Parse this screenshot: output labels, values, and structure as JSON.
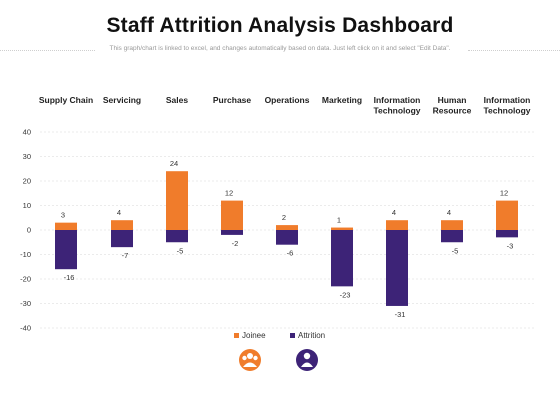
{
  "header": {
    "title": "Staff Attrition Analysis Dashboard",
    "subtitle": "This graph/chart is linked to excel, and changes automatically based on data. Just left click on it and select \"Edit Data\"."
  },
  "chart_data": {
    "type": "bar",
    "categories": [
      "Supply Chain",
      "Servicing",
      "Sales",
      "Purchase",
      "Operations",
      "Marketing",
      "Information Technology",
      "Human Resource",
      "Information Technology"
    ],
    "series": [
      {
        "name": "Joinee",
        "color": "#f07c2b",
        "values": [
          3,
          4,
          24,
          12,
          2,
          1,
          4,
          4,
          12
        ]
      },
      {
        "name": "Attrition",
        "color": "#3d2377",
        "values": [
          -16,
          -7,
          -5,
          -2,
          -6,
          -23,
          -31,
          -5,
          -3
        ]
      }
    ],
    "ylim": [
      -40,
      40
    ],
    "yticks": [
      40,
      30,
      20,
      10,
      0,
      -10,
      -20,
      -30,
      -40
    ],
    "grid": true,
    "legend": "bottom",
    "xlabel": "",
    "ylabel": ""
  },
  "icons": {
    "joinee_icon": "people-group-icon",
    "attrition_icon": "person-leaving-icon",
    "joinee_color": "#f07c2b",
    "attrition_color": "#3d2377"
  }
}
